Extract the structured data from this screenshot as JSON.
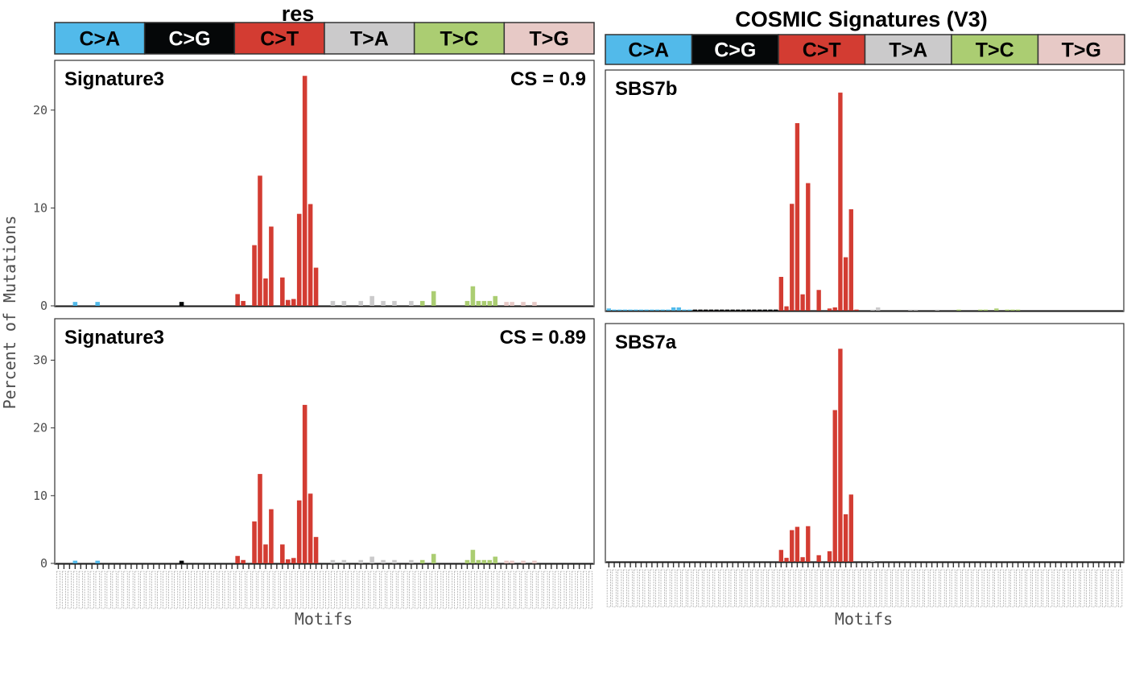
{
  "figure": {
    "ylabel": "Percent of Mutations",
    "xlabel": "Motifs"
  },
  "colors": {
    "C>A": "#52BAEA",
    "C>G": "#050708",
    "C>T": "#D33C32",
    "T>A": "#CBCACB",
    "T>C": "#ABCD72",
    "T>G": "#E7C9C6"
  },
  "chart_data": [
    {
      "type": "bar",
      "group_title": "res",
      "panel_label": "Signature3",
      "annotation": "CS = 0.9",
      "mutation_types": [
        "C>A",
        "C>G",
        "C>T",
        "T>A",
        "T>C",
        "T>G"
      ],
      "yticks": [
        0,
        10,
        20
      ],
      "ylim": [
        0,
        25
      ],
      "bars": [
        {
          "type": "C>A",
          "idx": 3,
          "value": 0.4
        },
        {
          "type": "C>A",
          "idx": 7,
          "value": 0.4
        },
        {
          "type": "C>G",
          "idx": 6,
          "value": 0.4
        },
        {
          "type": "C>T",
          "idx": 0,
          "value": 1.2
        },
        {
          "type": "C>T",
          "idx": 1,
          "value": 0.5
        },
        {
          "type": "C>T",
          "idx": 3,
          "value": 6.2
        },
        {
          "type": "C>T",
          "idx": 4,
          "value": 13.3
        },
        {
          "type": "C>T",
          "idx": 5,
          "value": 2.8
        },
        {
          "type": "C>T",
          "idx": 6,
          "value": 8.1
        },
        {
          "type": "C>T",
          "idx": 8,
          "value": 2.9
        },
        {
          "type": "C>T",
          "idx": 9,
          "value": 0.6
        },
        {
          "type": "C>T",
          "idx": 10,
          "value": 0.7
        },
        {
          "type": "C>T",
          "idx": 11,
          "value": 9.4
        },
        {
          "type": "C>T",
          "idx": 12,
          "value": 23.5
        },
        {
          "type": "C>T",
          "idx": 13,
          "value": 10.4
        },
        {
          "type": "C>T",
          "idx": 14,
          "value": 3.9
        },
        {
          "type": "T>A",
          "idx": 1,
          "value": 0.5
        },
        {
          "type": "T>A",
          "idx": 3,
          "value": 0.5
        },
        {
          "type": "T>A",
          "idx": 6,
          "value": 0.5
        },
        {
          "type": "T>A",
          "idx": 8,
          "value": 1.0
        },
        {
          "type": "T>A",
          "idx": 10,
          "value": 0.5
        },
        {
          "type": "T>A",
          "idx": 12,
          "value": 0.5
        },
        {
          "type": "T>A",
          "idx": 15,
          "value": 0.5
        },
        {
          "type": "T>C",
          "idx": 1,
          "value": 0.5
        },
        {
          "type": "T>C",
          "idx": 3,
          "value": 1.5
        },
        {
          "type": "T>C",
          "idx": 9,
          "value": 0.5
        },
        {
          "type": "T>C",
          "idx": 10,
          "value": 2.0
        },
        {
          "type": "T>C",
          "idx": 11,
          "value": 0.5
        },
        {
          "type": "T>C",
          "idx": 12,
          "value": 0.5
        },
        {
          "type": "T>C",
          "idx": 13,
          "value": 0.5
        },
        {
          "type": "T>C",
          "idx": 14,
          "value": 1.0
        },
        {
          "type": "T>G",
          "idx": 0,
          "value": 0.4
        },
        {
          "type": "T>G",
          "idx": 1,
          "value": 0.4
        },
        {
          "type": "T>G",
          "idx": 3,
          "value": 0.4
        },
        {
          "type": "T>G",
          "idx": 5,
          "value": 0.4
        }
      ]
    },
    {
      "type": "bar",
      "group_title": "res",
      "panel_label": "Signature3",
      "annotation": "CS = 0.89",
      "mutation_types": [
        "C>A",
        "C>G",
        "C>T",
        "T>A",
        "T>C",
        "T>G"
      ],
      "yticks": [
        0,
        10,
        20,
        30
      ],
      "ylim": [
        0,
        36
      ],
      "bars": [
        {
          "type": "C>A",
          "idx": 3,
          "value": 0.4
        },
        {
          "type": "C>A",
          "idx": 7,
          "value": 0.4
        },
        {
          "type": "C>G",
          "idx": 6,
          "value": 0.4
        },
        {
          "type": "C>T",
          "idx": 0,
          "value": 1.1
        },
        {
          "type": "C>T",
          "idx": 1,
          "value": 0.5
        },
        {
          "type": "C>T",
          "idx": 3,
          "value": 6.2
        },
        {
          "type": "C>T",
          "idx": 4,
          "value": 13.2
        },
        {
          "type": "C>T",
          "idx": 5,
          "value": 2.8
        },
        {
          "type": "C>T",
          "idx": 6,
          "value": 8.0
        },
        {
          "type": "C>T",
          "idx": 8,
          "value": 2.8
        },
        {
          "type": "C>T",
          "idx": 9,
          "value": 0.6
        },
        {
          "type": "C>T",
          "idx": 10,
          "value": 0.8
        },
        {
          "type": "C>T",
          "idx": 11,
          "value": 9.3
        },
        {
          "type": "C>T",
          "idx": 12,
          "value": 23.4
        },
        {
          "type": "C>T",
          "idx": 13,
          "value": 10.3
        },
        {
          "type": "C>T",
          "idx": 14,
          "value": 3.9
        },
        {
          "type": "T>A",
          "idx": 1,
          "value": 0.5
        },
        {
          "type": "T>A",
          "idx": 3,
          "value": 0.5
        },
        {
          "type": "T>A",
          "idx": 6,
          "value": 0.5
        },
        {
          "type": "T>A",
          "idx": 8,
          "value": 1.0
        },
        {
          "type": "T>A",
          "idx": 10,
          "value": 0.5
        },
        {
          "type": "T>A",
          "idx": 12,
          "value": 0.5
        },
        {
          "type": "T>A",
          "idx": 15,
          "value": 0.5
        },
        {
          "type": "T>C",
          "idx": 1,
          "value": 0.5
        },
        {
          "type": "T>C",
          "idx": 3,
          "value": 1.4
        },
        {
          "type": "T>C",
          "idx": 9,
          "value": 0.5
        },
        {
          "type": "T>C",
          "idx": 10,
          "value": 2.0
        },
        {
          "type": "T>C",
          "idx": 11,
          "value": 0.5
        },
        {
          "type": "T>C",
          "idx": 12,
          "value": 0.5
        },
        {
          "type": "T>C",
          "idx": 13,
          "value": 0.5
        },
        {
          "type": "T>C",
          "idx": 14,
          "value": 1.0
        },
        {
          "type": "T>G",
          "idx": 0,
          "value": 0.4
        },
        {
          "type": "T>G",
          "idx": 1,
          "value": 0.4
        },
        {
          "type": "T>G",
          "idx": 3,
          "value": 0.4
        },
        {
          "type": "T>G",
          "idx": 5,
          "value": 0.4
        }
      ]
    },
    {
      "type": "bar",
      "group_title": "COSMIC Signatures (V3)",
      "panel_label": "SBS7b",
      "annotation": "",
      "mutation_types": [
        "C>A",
        "C>G",
        "C>T",
        "T>A",
        "T>C",
        "T>G"
      ],
      "yticks": [],
      "ylim": [
        0,
        22
      ],
      "bars": [
        {
          "type": "C>A",
          "idx": 0,
          "value": 0.2
        },
        {
          "type": "C>A",
          "idx": 1,
          "value": 0.1
        },
        {
          "type": "C>A",
          "idx": 2,
          "value": 0.1
        },
        {
          "type": "C>A",
          "idx": 3,
          "value": 0.1
        },
        {
          "type": "C>A",
          "idx": 4,
          "value": 0.1
        },
        {
          "type": "C>A",
          "idx": 5,
          "value": 0.1
        },
        {
          "type": "C>A",
          "idx": 6,
          "value": 0.1
        },
        {
          "type": "C>A",
          "idx": 7,
          "value": 0.1
        },
        {
          "type": "C>A",
          "idx": 8,
          "value": 0.1
        },
        {
          "type": "C>A",
          "idx": 9,
          "value": 0.1
        },
        {
          "type": "C>A",
          "idx": 10,
          "value": 0.1
        },
        {
          "type": "C>A",
          "idx": 11,
          "value": 0.1
        },
        {
          "type": "C>A",
          "idx": 12,
          "value": 0.3
        },
        {
          "type": "C>A",
          "idx": 13,
          "value": 0.3
        },
        {
          "type": "C>A",
          "idx": 14,
          "value": 0.1
        },
        {
          "type": "C>A",
          "idx": 15,
          "value": 0.1
        },
        {
          "type": "C>G",
          "idx": 0,
          "value": 0.1
        },
        {
          "type": "C>G",
          "idx": 1,
          "value": 0.1
        },
        {
          "type": "C>G",
          "idx": 2,
          "value": 0.1
        },
        {
          "type": "C>G",
          "idx": 3,
          "value": 0.1
        },
        {
          "type": "C>G",
          "idx": 4,
          "value": 0.1
        },
        {
          "type": "C>G",
          "idx": 5,
          "value": 0.1
        },
        {
          "type": "C>G",
          "idx": 6,
          "value": 0.1
        },
        {
          "type": "C>G",
          "idx": 7,
          "value": 0.1
        },
        {
          "type": "C>G",
          "idx": 8,
          "value": 0.1
        },
        {
          "type": "C>G",
          "idx": 9,
          "value": 0.1
        },
        {
          "type": "C>G",
          "idx": 10,
          "value": 0.1
        },
        {
          "type": "C>G",
          "idx": 11,
          "value": 0.1
        },
        {
          "type": "C>G",
          "idx": 12,
          "value": 0.1
        },
        {
          "type": "C>G",
          "idx": 13,
          "value": 0.1
        },
        {
          "type": "C>G",
          "idx": 14,
          "value": 0.1
        },
        {
          "type": "C>G",
          "idx": 15,
          "value": 0.1
        },
        {
          "type": "C>T",
          "idx": 0,
          "value": 3.1
        },
        {
          "type": "C>T",
          "idx": 1,
          "value": 0.4
        },
        {
          "type": "C>T",
          "idx": 2,
          "value": 9.8
        },
        {
          "type": "C>T",
          "idx": 3,
          "value": 17.2
        },
        {
          "type": "C>T",
          "idx": 4,
          "value": 1.5
        },
        {
          "type": "C>T",
          "idx": 5,
          "value": 11.7
        },
        {
          "type": "C>T",
          "idx": 7,
          "value": 1.9
        },
        {
          "type": "C>T",
          "idx": 9,
          "value": 0.2
        },
        {
          "type": "C>T",
          "idx": 10,
          "value": 0.3
        },
        {
          "type": "C>T",
          "idx": 11,
          "value": 20.0
        },
        {
          "type": "C>T",
          "idx": 12,
          "value": 4.9
        },
        {
          "type": "C>T",
          "idx": 13,
          "value": 9.3
        },
        {
          "type": "C>T",
          "idx": 14,
          "value": 0.1
        },
        {
          "type": "T>A",
          "idx": 1,
          "value": 0.1
        },
        {
          "type": "T>A",
          "idx": 2,
          "value": 0.3
        },
        {
          "type": "T>A",
          "idx": 8,
          "value": 0.1
        },
        {
          "type": "T>A",
          "idx": 9,
          "value": 0.1
        },
        {
          "type": "T>A",
          "idx": 13,
          "value": 0.1
        },
        {
          "type": "T>C",
          "idx": 1,
          "value": 0.1
        },
        {
          "type": "T>C",
          "idx": 5,
          "value": 0.1
        },
        {
          "type": "T>C",
          "idx": 6,
          "value": 0.1
        },
        {
          "type": "T>C",
          "idx": 8,
          "value": 0.2
        },
        {
          "type": "T>C",
          "idx": 10,
          "value": 0.1
        },
        {
          "type": "T>C",
          "idx": 11,
          "value": 0.1
        },
        {
          "type": "T>C",
          "idx": 12,
          "value": 0.1
        }
      ]
    },
    {
      "type": "bar",
      "group_title": "COSMIC Signatures (V3)",
      "panel_label": "SBS7a",
      "annotation": "",
      "mutation_types": [
        "C>A",
        "C>G",
        "C>T",
        "T>A",
        "T>C",
        "T>G"
      ],
      "yticks": [],
      "ylim": [
        0,
        36
      ],
      "bars": [
        {
          "type": "C>T",
          "idx": 0,
          "value": 1.8
        },
        {
          "type": "C>T",
          "idx": 1,
          "value": 0.6
        },
        {
          "type": "C>T",
          "idx": 2,
          "value": 4.8
        },
        {
          "type": "C>T",
          "idx": 3,
          "value": 5.3
        },
        {
          "type": "C>T",
          "idx": 4,
          "value": 0.7
        },
        {
          "type": "C>T",
          "idx": 5,
          "value": 5.4
        },
        {
          "type": "C>T",
          "idx": 7,
          "value": 1.0
        },
        {
          "type": "C>T",
          "idx": 9,
          "value": 1.6
        },
        {
          "type": "C>T",
          "idx": 10,
          "value": 23.0
        },
        {
          "type": "C>T",
          "idx": 11,
          "value": 32.3
        },
        {
          "type": "C>T",
          "idx": 12,
          "value": 7.2
        },
        {
          "type": "C>T",
          "idx": 13,
          "value": 10.2
        },
        {
          "type": "T>A",
          "idx": 1,
          "value": 0.2
        }
      ]
    }
  ]
}
